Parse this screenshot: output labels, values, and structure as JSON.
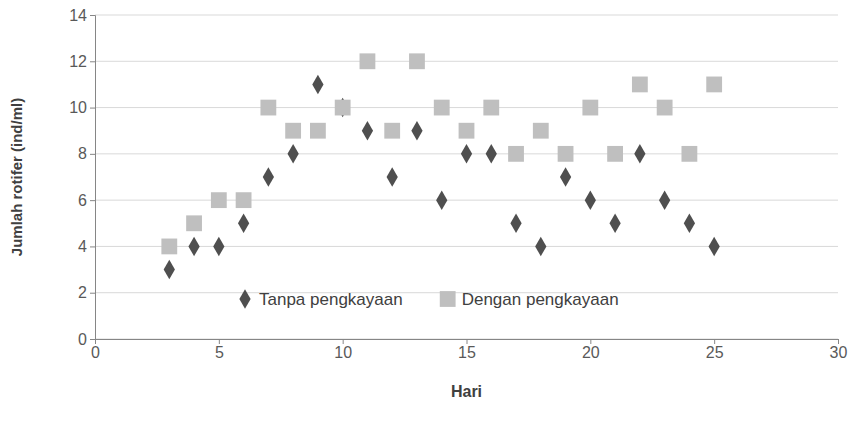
{
  "chart_data": {
    "type": "scatter",
    "x_label": "Hari",
    "y_label": "Jumlah rotifer  (ind/ml)",
    "x": [
      3,
      4,
      5,
      6,
      7,
      8,
      9,
      10,
      11,
      12,
      13,
      14,
      15,
      16,
      17,
      18,
      19,
      20,
      21,
      22,
      23,
      24,
      25
    ],
    "series": [
      {
        "name": "Tanpa pengkayaan",
        "color": "#4f4f4f",
        "marker": "diamond",
        "values": [
          3,
          4,
          4,
          5,
          7,
          8,
          11,
          10,
          9,
          7,
          9,
          6,
          8,
          8,
          5,
          4,
          7,
          6,
          5,
          8,
          6,
          5,
          4
        ]
      },
      {
        "name": "Dengan pengkayaan",
        "color": "#bfbfbf",
        "marker": "square",
        "values": [
          4,
          5,
          6,
          6,
          10,
          9,
          9,
          10,
          12,
          9,
          12,
          10,
          9,
          10,
          8,
          9,
          8,
          10,
          8,
          11,
          10,
          8,
          11
        ]
      }
    ],
    "xlim": [
      0,
      30
    ],
    "xticks": [
      0,
      5,
      10,
      15,
      20,
      25,
      30
    ],
    "ylim": [
      0,
      14
    ],
    "yticks": [
      0,
      2,
      4,
      6,
      8,
      10,
      12,
      14
    ],
    "grid": true,
    "legend": "bottom"
  }
}
